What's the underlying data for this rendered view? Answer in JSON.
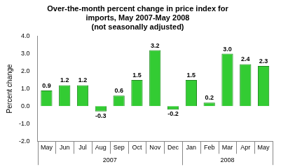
{
  "chart_data": {
    "type": "bar",
    "title": [
      "Over-the-month percent change in price index for",
      "imports, May 2007-May 2008",
      "(not seasonally adjusted)"
    ],
    "y_label": "Percent change",
    "categories": [
      "May",
      "Jun",
      "Jul",
      "Aug",
      "Sep",
      "Oct",
      "Nov",
      "Dec",
      "Jan",
      "Feb",
      "Mar",
      "Apr",
      "May"
    ],
    "groups": [
      {
        "label": "2007",
        "start": 0,
        "end": 7
      },
      {
        "label": "2008",
        "start": 8,
        "end": 12
      }
    ],
    "values": [
      0.9,
      1.2,
      1.2,
      -0.3,
      0.6,
      1.5,
      3.2,
      -0.2,
      1.5,
      0.2,
      3.0,
      2.4,
      2.3
    ],
    "value_labels": [
      "0.9",
      "1.2",
      "1.2",
      "-0.3",
      "0.6",
      "1.5",
      "3.2",
      "-0.2",
      "1.5",
      "0.2",
      "3.0",
      "2.4",
      "2.3"
    ],
    "color": "#33cc33",
    "ylim": [
      -2,
      4
    ],
    "yticks": [
      {
        "value": -2,
        "label": "-2.0"
      },
      {
        "value": -1,
        "label": "-1.0"
      },
      {
        "value": 0,
        "label": "0.0"
      },
      {
        "value": 1,
        "label": "1.0"
      },
      {
        "value": 2,
        "label": "2.0"
      },
      {
        "value": 3,
        "label": "3.0"
      },
      {
        "value": 4,
        "label": "4.0"
      }
    ],
    "grid": false,
    "data_labels": true
  }
}
